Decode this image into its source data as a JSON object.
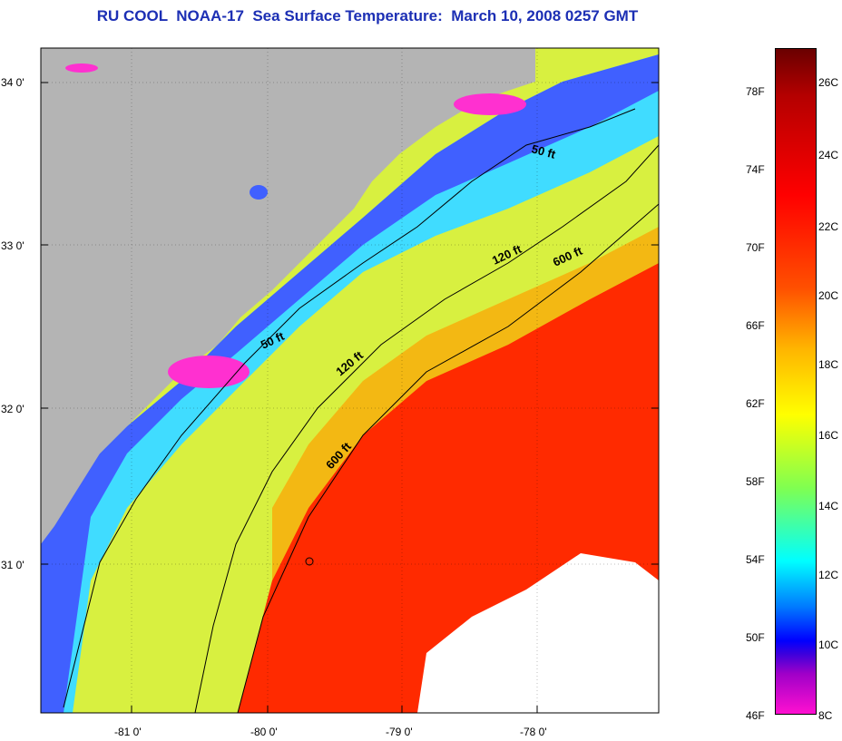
{
  "title": "RU COOL  NOAA-17  Sea Surface Temperature:  March 10, 2008 0257 GMT",
  "map": {
    "lat_labels": [
      "34 0'",
      "33 0'",
      "32 0'",
      "31 0'"
    ],
    "lon_labels": [
      "-81 0'",
      "-80 0'",
      "-79 0'",
      "-78 0'"
    ],
    "land_color": "#b4b4b4",
    "contour_labels": [
      "50 ft",
      "50 ft",
      "120 ft",
      "120 ft",
      "600 ft",
      "600 ft"
    ]
  },
  "colorbar": {
    "fahrenheit_labels": [
      "78F",
      "74F",
      "70F",
      "66F",
      "62F",
      "58F",
      "54F",
      "50F",
      "46F"
    ],
    "celsius_labels": [
      "26C",
      "24C",
      "22C",
      "20C",
      "18C",
      "16C",
      "14C",
      "12C",
      "10C",
      "8C"
    ]
  }
}
